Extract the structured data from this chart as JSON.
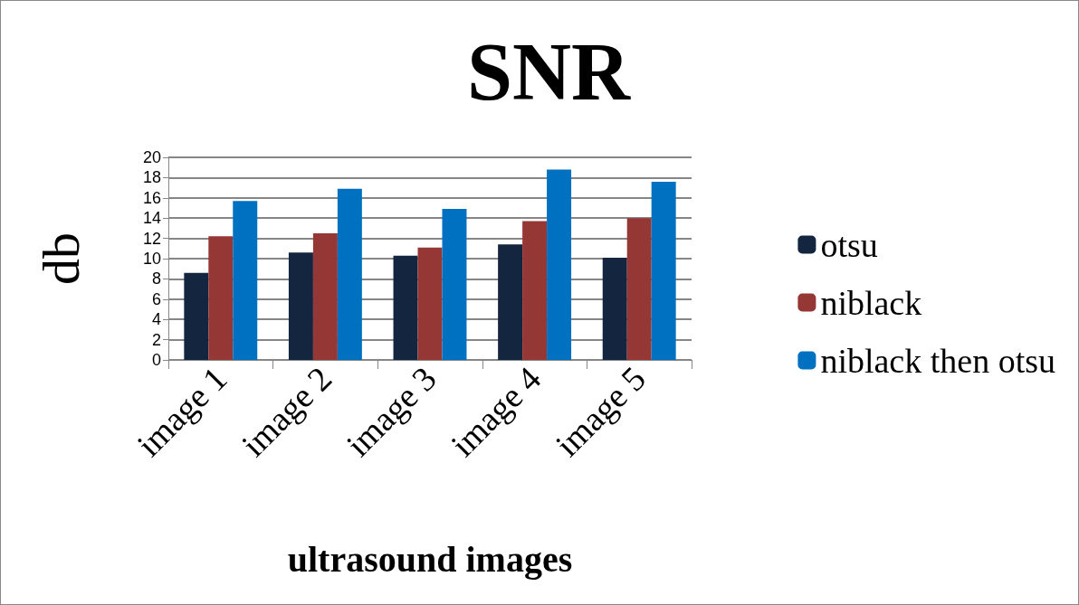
{
  "chart_data": {
    "type": "bar",
    "title": "SNR",
    "xlabel": "ultrasound images",
    "ylabel": "db",
    "categories": [
      "image 1",
      "image 2",
      "image 3",
      "image 4",
      "image 5"
    ],
    "series": [
      {
        "name": "otsu",
        "color": "#13253f",
        "values": [
          8.6,
          10.6,
          10.3,
          11.4,
          10.1
        ]
      },
      {
        "name": "niblack",
        "color": "#953735",
        "values": [
          12.2,
          12.5,
          11.1,
          13.7,
          14.0
        ]
      },
      {
        "name": "niblack then otsu",
        "color": "#0070c0",
        "values": [
          15.7,
          16.9,
          14.9,
          18.8,
          17.6
        ]
      }
    ],
    "ylim": [
      0,
      20
    ],
    "yticks": [
      0,
      2,
      4,
      6,
      8,
      10,
      12,
      14,
      16,
      18,
      20
    ],
    "grid": "y",
    "legend": "right"
  }
}
